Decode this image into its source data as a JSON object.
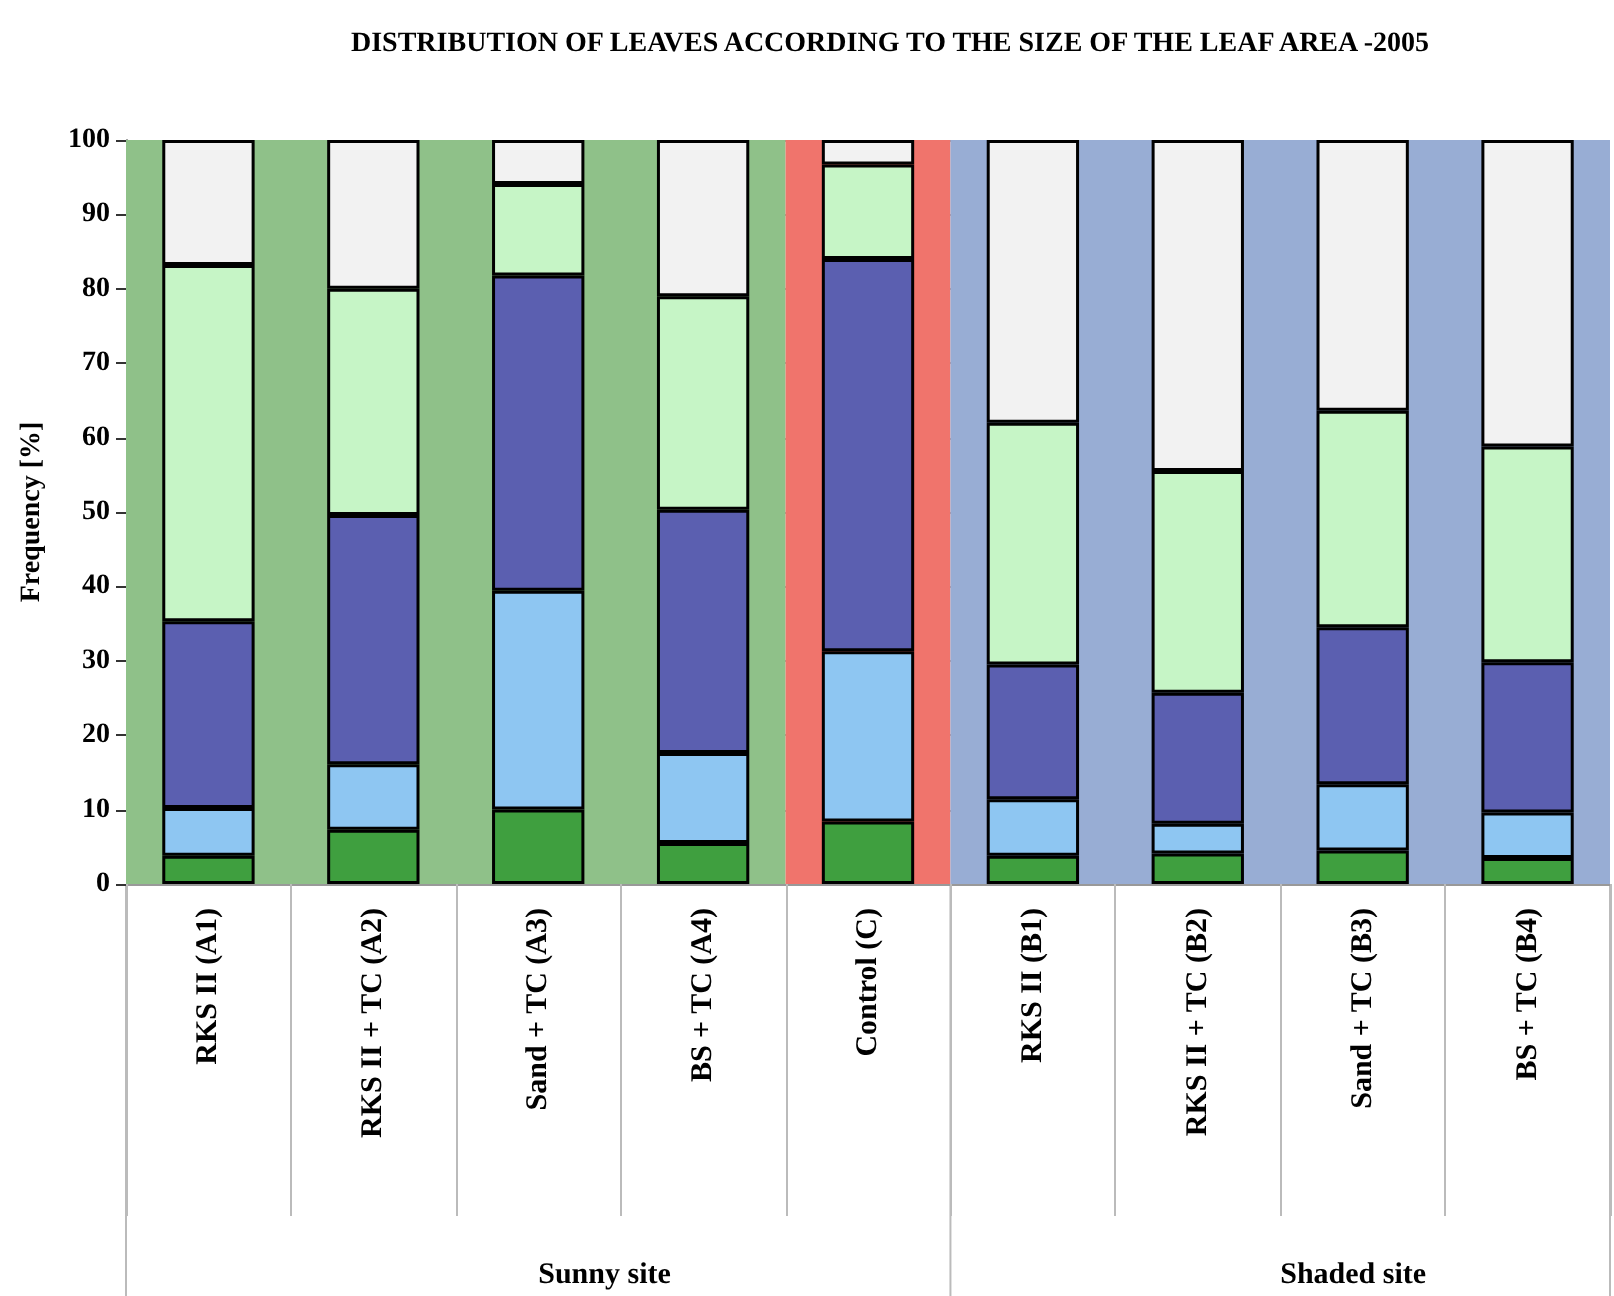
{
  "chart_data": {
    "type": "bar",
    "stacked": true,
    "title": "DISTRIBUTION OF LEAVES ACCORDING TO THE SIZE OF THE LEAF AREA -2005",
    "ylabel": "Frequency [%]",
    "categories": [
      "RKS II (A1)",
      "RKS II + TC (A2)",
      "Sand + TC (A3)",
      "BS + TC (A4)",
      "Control (C)",
      "RKS II (B1)",
      "RKS II + TC (B2)",
      "Sand + TC (B3)",
      "BS + TC (B4)"
    ],
    "series": [
      {
        "color": "#3f9f3f",
        "values": [
          3.8,
          7.3,
          10.0,
          5.5,
          8.4,
          3.8,
          4.1,
          4.5,
          3.5
        ]
      },
      {
        "color": "#8ec6f2",
        "values": [
          6.4,
          8.8,
          29.4,
          12.1,
          22.9,
          7.6,
          4.0,
          8.9,
          6.1
        ]
      },
      {
        "color": "#5b5fb0",
        "values": [
          25.1,
          33.5,
          42.4,
          32.7,
          52.7,
          18.1,
          17.6,
          21.1,
          20.2
        ]
      },
      {
        "color": "#c6f5c6",
        "values": [
          47.9,
          30.4,
          12.3,
          28.7,
          12.7,
          32.5,
          29.8,
          29.1,
          29.0
        ]
      },
      {
        "color": "#f2f2f2",
        "values": [
          16.8,
          20.0,
          5.9,
          21.0,
          3.3,
          38.0,
          44.5,
          36.4,
          41.2
        ]
      }
    ],
    "ylim": [
      0,
      100
    ],
    "yticks": [
      0,
      10,
      20,
      30,
      40,
      50,
      60,
      70,
      80,
      90,
      100
    ],
    "grid": "y",
    "bands": [
      {
        "axis": "x",
        "from": "RKS II (A1)",
        "to": "BS + TC (A4)",
        "color": "#8fc189"
      },
      {
        "axis": "x",
        "from": "Control (C)",
        "to": "Control (C)",
        "color": "#f0746c"
      },
      {
        "axis": "x",
        "from": "RKS II (B1)",
        "to": "BS + TC (B4)",
        "color": "#98add4"
      }
    ],
    "annotations": [
      "Sunny site",
      "Shaded site"
    ]
  }
}
